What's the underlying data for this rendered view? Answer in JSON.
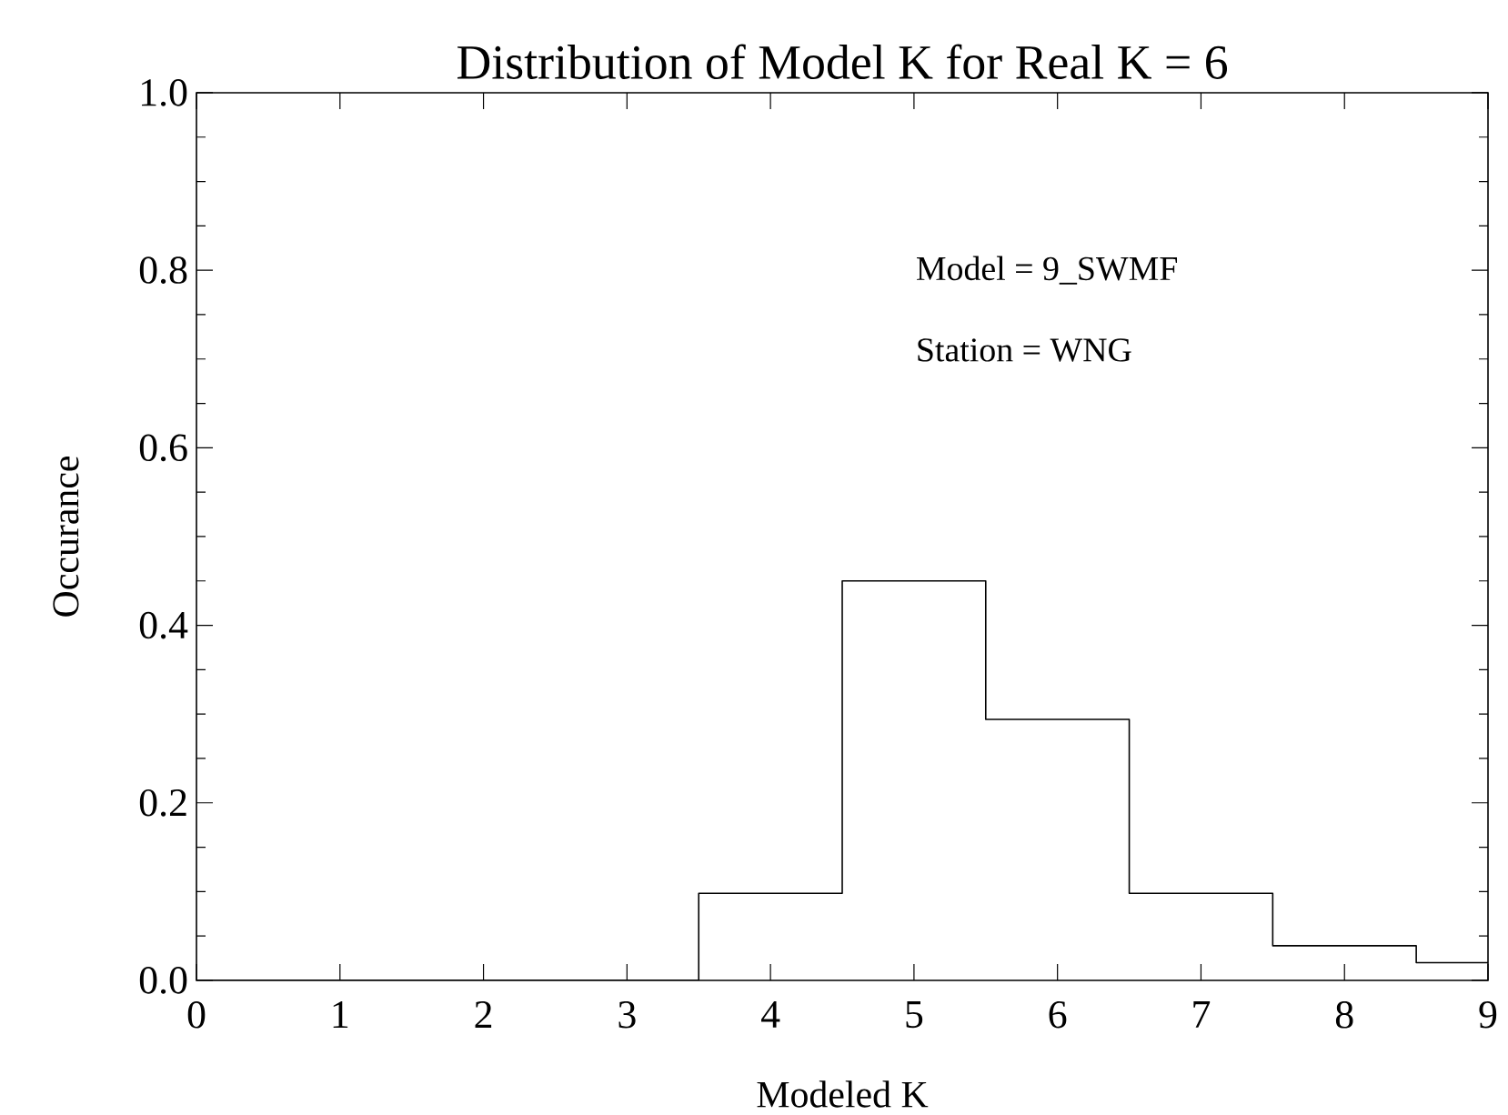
{
  "chart_data": {
    "type": "histogram",
    "title": "Distribution of Model K for Real K = 6",
    "xlabel": "Modeled K",
    "ylabel": "Occurance",
    "annotations": [
      "Model = 9_SWMF",
      "Station = WNG"
    ],
    "bins": [
      0,
      0.5,
      1.5,
      2.5,
      3.5,
      4.5,
      5.5,
      6.5,
      7.5,
      8.5,
      9
    ],
    "values": [
      0,
      0,
      0,
      0,
      0.098,
      0.45,
      0.294,
      0.098,
      0.039,
      0.02
    ],
    "color": "#000000",
    "xlim": [
      0,
      9
    ],
    "xticks": [
      0,
      1,
      2,
      3,
      4,
      5,
      6,
      7,
      8,
      9
    ],
    "ylim": [
      0,
      1
    ],
    "yticks": [
      {
        "value": 0,
        "label": "0.0"
      },
      {
        "value": 0.2,
        "label": "0.2"
      },
      {
        "value": 0.4,
        "label": "0.4"
      },
      {
        "value": 0.6,
        "label": "0.6"
      },
      {
        "value": 0.8,
        "label": "0.8"
      },
      {
        "value": 1,
        "label": "1.0"
      }
    ],
    "grid": false
  }
}
